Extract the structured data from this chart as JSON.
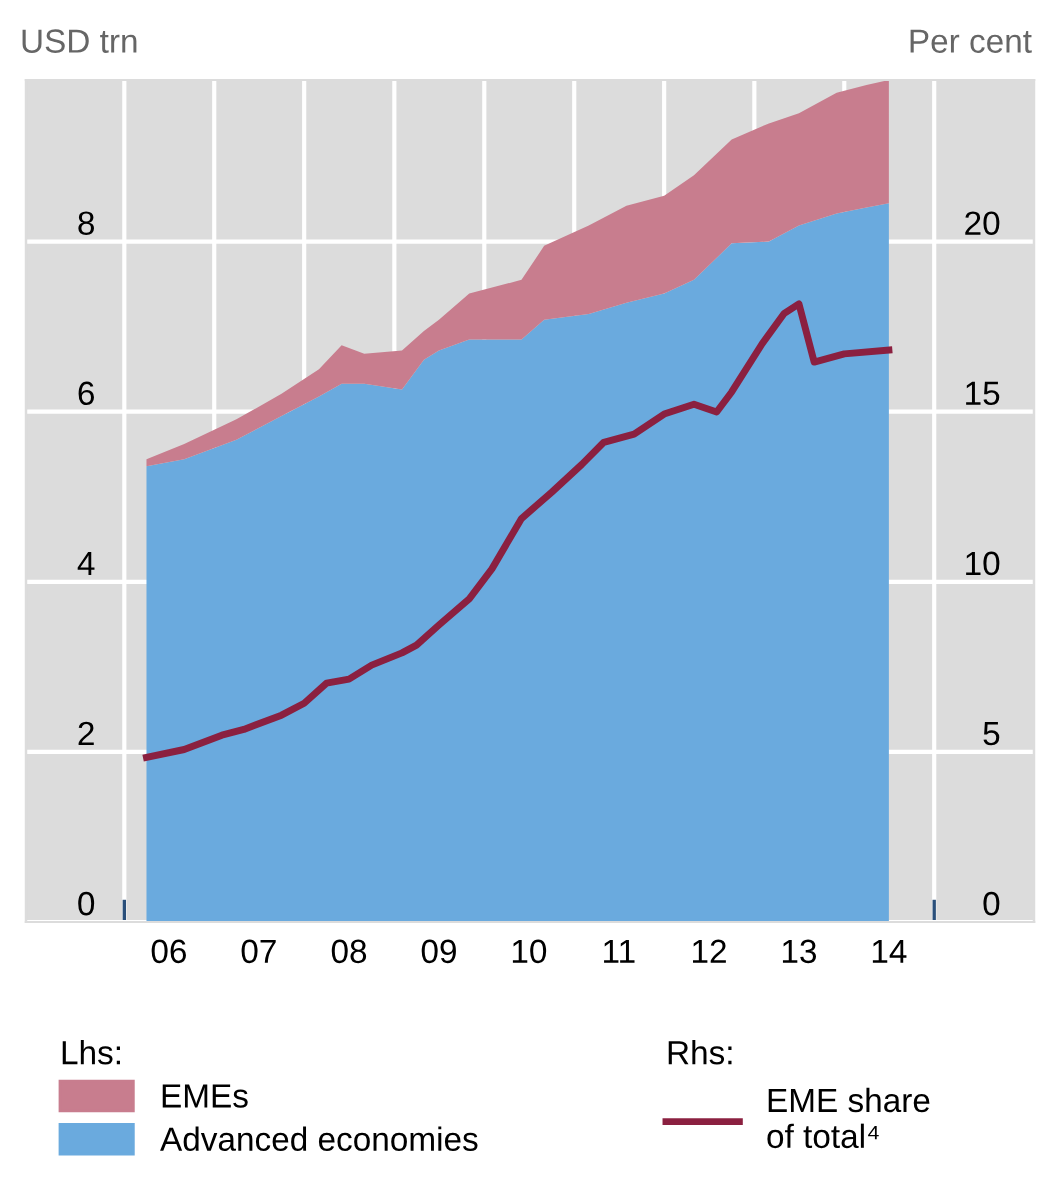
{
  "chart_data": {
    "type": "area",
    "stacked": true,
    "ylabel": "USD trn",
    "y2label": "Per cent",
    "x": [
      "2006-04",
      "2006-09",
      "2007-04",
      "2007-10",
      "2008-03",
      "2008-06",
      "2008-09",
      "2009-02",
      "2009-05",
      "2009-07",
      "2009-11",
      "2010-06",
      "2010-09",
      "2011-03",
      "2011-08",
      "2012-01",
      "2012-05",
      "2012-10",
      "2013-03",
      "2013-07",
      "2013-12",
      "2014-04",
      "2014-07"
    ],
    "series": [
      {
        "name": "Advanced economies",
        "color": "#6aaade",
        "values": [
          5.36,
          5.44,
          5.67,
          5.95,
          6.18,
          6.33,
          6.33,
          6.26,
          6.61,
          6.72,
          6.85,
          6.85,
          7.08,
          7.15,
          7.28,
          7.39,
          7.55,
          7.98,
          8.0,
          8.19,
          8.33,
          8.4,
          8.45
        ]
      },
      {
        "name": "EMEs",
        "color": "#c87d8e",
        "values": [
          0.08,
          0.18,
          0.24,
          0.26,
          0.32,
          0.45,
          0.35,
          0.46,
          0.34,
          0.36,
          0.54,
          0.7,
          0.87,
          1.04,
          1.14,
          1.15,
          1.23,
          1.22,
          1.39,
          1.32,
          1.42,
          1.44,
          1.45
        ]
      },
      {
        "name": "EME share\nof total⁴",
        "type": "line",
        "axis": "y2",
        "color": "#8b2040",
        "x": [
          "2006-04",
          "2006-09",
          "2007-02",
          "2007-05",
          "2007-10",
          "2008-01",
          "2008-04",
          "2008-07",
          "2008-10",
          "2009-02",
          "2009-04",
          "2009-07",
          "2009-11",
          "2010-02",
          "2010-06",
          "2010-10",
          "2011-02",
          "2011-05",
          "2011-09",
          "2012-01",
          "2012-05",
          "2012-08",
          "2012-10",
          "2013-02",
          "2013-05",
          "2013-07",
          "2013-09",
          "2014-01",
          "2014-07"
        ],
        "values": [
          4.84,
          5.07,
          5.49,
          5.66,
          6.08,
          6.43,
          7.02,
          7.14,
          7.55,
          7.91,
          8.14,
          8.73,
          9.5,
          10.38,
          11.86,
          12.63,
          13.45,
          14.1,
          14.34,
          14.93,
          15.22,
          14.99,
          15.58,
          16.99,
          17.88,
          18.17,
          16.46,
          16.7,
          16.81
        ]
      }
    ],
    "xlim": [
      "2004-11-28",
      "2016-02-10"
    ],
    "xticks": [
      {
        "value": "2006",
        "label": null
      },
      {
        "value": "2006-07",
        "label": "06"
      },
      {
        "value": "2007",
        "label": null
      },
      {
        "value": "2007-07",
        "label": "07"
      },
      {
        "value": "2008",
        "label": null
      },
      {
        "value": "2008-07",
        "label": "08"
      },
      {
        "value": "2009",
        "label": null
      },
      {
        "value": "2009-07",
        "label": "09"
      },
      {
        "value": "2010",
        "label": null
      },
      {
        "value": "2010-07",
        "label": "10"
      },
      {
        "value": "2011",
        "label": null
      },
      {
        "value": "2011-07",
        "label": "11"
      },
      {
        "value": "2012",
        "label": null
      },
      {
        "value": "2012-07",
        "label": "12"
      },
      {
        "value": "2013",
        "label": null
      },
      {
        "value": "2013-07",
        "label": "13"
      },
      {
        "value": "2014",
        "label": null
      },
      {
        "value": "2014-07",
        "label": "14"
      },
      {
        "value": "2015",
        "label": null
      }
    ],
    "ylim": [
      0,
      9.9
    ],
    "yticks": [
      0,
      2,
      4,
      6,
      8
    ],
    "y2lim": [
      0,
      24.75
    ],
    "y2ticks": [
      0,
      5,
      10,
      15,
      20
    ],
    "grid": true,
    "legend": "bottom",
    "annotations": [
      "Lhs:",
      "Rhs:"
    ]
  }
}
